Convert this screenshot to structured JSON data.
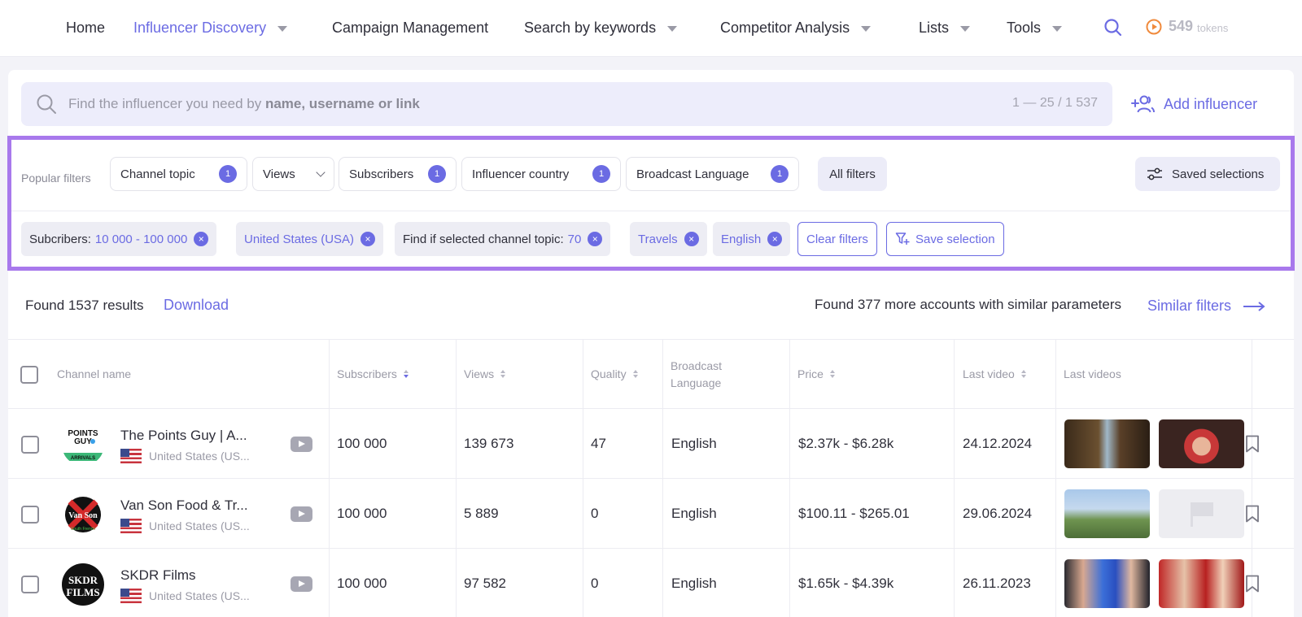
{
  "nav": {
    "home": "Home",
    "discovery": "Influencer Discovery",
    "campaign": "Campaign Management",
    "keywords": "Search by keywords",
    "competitor": "Competitor Analysis",
    "lists": "Lists",
    "tools": "Tools",
    "tokens_count": "549",
    "tokens_label": "tokens"
  },
  "search": {
    "placeholder_prefix": "Find the influencer you need by ",
    "placeholder_bold": "name, username or link",
    "count": "1 — 25 / 1 537",
    "add_influencer": "Add influencer"
  },
  "filters": {
    "popular_label": "Popular filters",
    "channel_topic": {
      "label": "Channel topic",
      "badge": "1"
    },
    "views": {
      "label": "Views"
    },
    "subscribers": {
      "label": "Subscribers",
      "badge": "1"
    },
    "country": {
      "label": "Influencer country",
      "badge": "1"
    },
    "language": {
      "label": "Broadcast Language",
      "badge": "1"
    },
    "all_filters": "All filters",
    "saved_selections": "Saved selections",
    "active": {
      "subs_key": "Subcribers:",
      "subs_val": "10 000 - 100 000",
      "country_val": "United States (USA)",
      "topic_key": "Find if selected channel topic:",
      "topic_val": "70",
      "travels_val": "Travels",
      "english_val": "English"
    },
    "clear": "Clear filters",
    "save_selection": "Save selection"
  },
  "results": {
    "found": "Found 1537 results",
    "download": "Download",
    "similar_text": "Found 377 more accounts with similar parameters",
    "similar_button": "Similar filters"
  },
  "table": {
    "headers": {
      "channel": "Channel name",
      "subscribers": "Subscribers",
      "views": "Views",
      "quality": "Quality",
      "language_1": "Broadcast",
      "language_2": "Language",
      "price": "Price",
      "last_video": "Last video",
      "last_videos": "Last videos"
    },
    "rows": [
      {
        "name": "The Points Guy | A...",
        "country": "United States (US...",
        "subscribers": "100 000",
        "views": "139 673",
        "quality": "47",
        "language": "English",
        "price": "$2.37k - $6.28k",
        "last_video": "24.12.2024"
      },
      {
        "name": "Van Son Food & Tr...",
        "country": "United States (US...",
        "subscribers": "100 000",
        "views": "5 889",
        "quality": "0",
        "language": "English",
        "price": "$100.11 - $265.01",
        "last_video": "29.06.2024"
      },
      {
        "name": "SKDR Films",
        "country": "United States (US...",
        "subscribers": "100 000",
        "views": "97 582",
        "quality": "0",
        "language": "English",
        "price": "$1.65k - $4.39k",
        "last_video": "26.11.2023"
      }
    ]
  },
  "colors": {
    "accent": "#6b6be3",
    "highlight_border": "#a879ec",
    "tokens_icon": "#f08a3c"
  },
  "icons": [
    "search-icon",
    "play-token-icon",
    "add-user-icon",
    "sliders-icon",
    "filter-plus-icon",
    "arrow-right-icon",
    "youtube-icon",
    "bookmark-icon",
    "us-flag-icon"
  ]
}
